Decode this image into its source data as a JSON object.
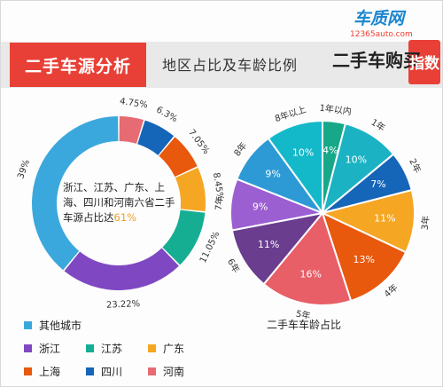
{
  "header": {
    "title": "二手车源分析",
    "subtitle": "地区占比及车龄比例"
  },
  "logo": {
    "brand": "车质网",
    "url_text": "12365auto.com",
    "slogan": "二手车购买",
    "badge": "指数"
  },
  "donut": {
    "center_text_main": "浙江、江苏、广东、上海、四川和河南六省二手车源占比达",
    "center_text_value": "61%"
  },
  "pie": {
    "caption": "二手车车龄占比"
  },
  "chart_data": [
    {
      "type": "pie",
      "variant": "donut",
      "categories": [
        "其他城市",
        "浙江",
        "江苏",
        "广东",
        "上海",
        "四川",
        "河南"
      ],
      "values": [
        39,
        23.22,
        11.05,
        8.45,
        7.05,
        6.3,
        4.75
      ],
      "value_labels": [
        "39%",
        "23.22%",
        "11.05%",
        "8.45%",
        "7.05%",
        "6.3%",
        "4.75%"
      ],
      "colors": [
        "#3ba8dd",
        "#7f48c2",
        "#16ae93",
        "#f5a623",
        "#e8580d",
        "#1565b8",
        "#e66b73"
      ],
      "legend_placement": "bottom-left"
    },
    {
      "type": "pie",
      "categories": [
        "1年以内",
        "1年",
        "2年",
        "3年",
        "4年",
        "5年",
        "6年",
        "7年",
        "8年",
        "8年以上"
      ],
      "values": [
        4,
        10,
        7,
        11,
        13,
        16,
        11,
        9,
        9,
        10
      ],
      "value_labels": [
        "4%",
        "10%",
        "7%",
        "11%",
        "13%",
        "16%",
        "11%",
        "9%",
        "9%",
        "10%"
      ],
      "colors": [
        "#17a889",
        "#1bb3c4",
        "#1565b8",
        "#f5a623",
        "#e8580d",
        "#e85f67",
        "#6a3d8f",
        "#9b5fd1",
        "#2d9ad6",
        "#14b9c9"
      ],
      "title": "二手车车龄占比"
    }
  ]
}
